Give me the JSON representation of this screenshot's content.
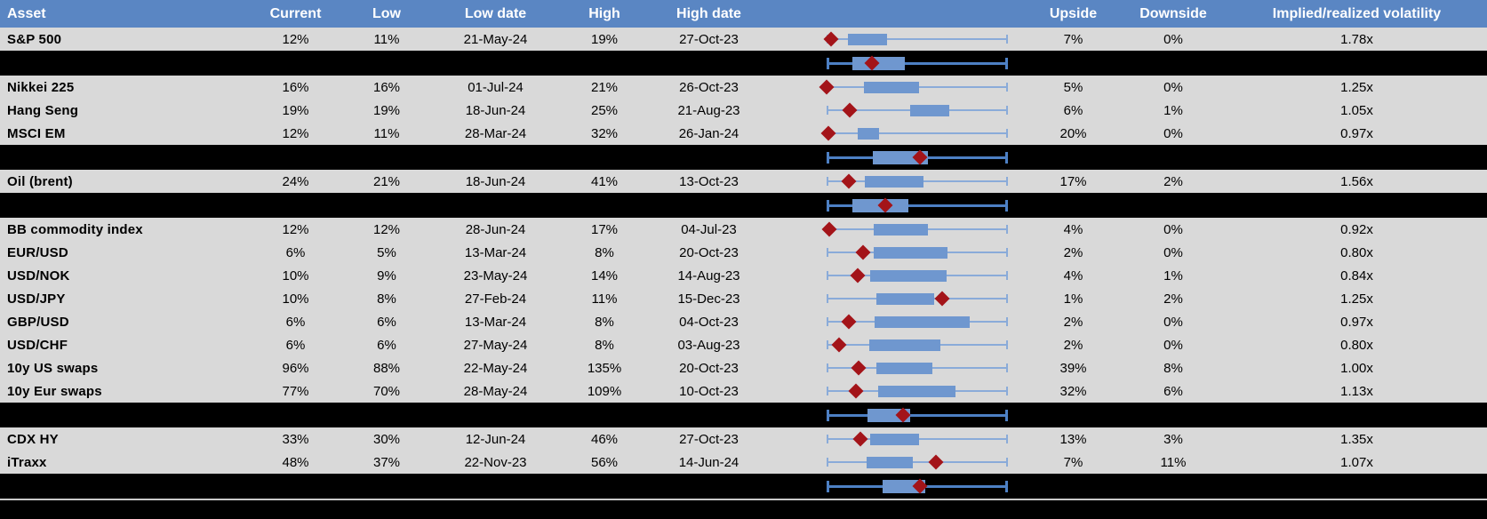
{
  "title": "Implied volatility monitor table with 1-year range box plots",
  "colors": {
    "header_bg": "#5a86c3",
    "header_text": "#ffffff",
    "row_bg": "#d9d9d9",
    "separator_bg": "#000000",
    "box_fill": "#6f97cf",
    "whisker_on_gray": "#8aabd9",
    "whisker_on_black": "#4d80c4",
    "diamond": "#a31419",
    "bottom_line": "#c9c9c9"
  },
  "header": {
    "columns": [
      "Asset",
      "Current",
      "Low",
      "Low date",
      "High",
      "High date",
      "",
      "Upside",
      "Downside",
      "Implied/realized volatility"
    ]
  },
  "chart_data": {
    "type": "table",
    "note": "Each row contains a horizontal box plot normalized to the row's low-high range: whiskers span 0-1 (full range), box = interquartile band, diamond = current level. Aggregate (black) rows show group-average box plots. Values q1/q3/diamond are fractions of the 204px plot width.",
    "legend": {
      "diamond": "current implied volatility",
      "box": "middle range (quartiles) of past year",
      "whiskers": "low-high range of past year"
    },
    "rows": [
      {
        "kind": "data",
        "asset": "S&P 500",
        "current": "12%",
        "low": "11%",
        "low_date": "21-May-24",
        "high": "19%",
        "high_date": "27-Oct-23",
        "upside": "7%",
        "downside": "0%",
        "impl_real": "1.78x",
        "boxplot": {
          "q1": 0.118,
          "q3": 0.338,
          "diamond": 0.025
        }
      },
      {
        "kind": "aggregate",
        "boxplot": {
          "q1": 0.147,
          "q3": 0.436,
          "diamond": 0.25
        }
      },
      {
        "kind": "data",
        "asset": "Nikkei 225",
        "current": "16%",
        "low": "16%",
        "low_date": "01-Jul-24",
        "high": "21%",
        "high_date": "26-Oct-23",
        "upside": "5%",
        "downside": "0%",
        "impl_real": "1.25x",
        "boxplot": {
          "q1": 0.206,
          "q3": 0.51,
          "diamond": 0.0
        }
      },
      {
        "kind": "data",
        "asset": "Hang Seng",
        "current": "19%",
        "low": "19%",
        "low_date": "18-Jun-24",
        "high": "25%",
        "high_date": "21-Aug-23",
        "upside": "6%",
        "downside": "1%",
        "impl_real": "1.05x",
        "boxplot": {
          "q1": 0.461,
          "q3": 0.681,
          "diamond": 0.132
        }
      },
      {
        "kind": "data",
        "asset": "MSCI EM",
        "current": "12%",
        "low": "11%",
        "low_date": "28-Mar-24",
        "high": "32%",
        "high_date": "26-Jan-24",
        "upside": "20%",
        "downside": "0%",
        "impl_real": "0.97x",
        "boxplot": {
          "q1": 0.176,
          "q3": 0.294,
          "diamond": 0.01
        }
      },
      {
        "kind": "aggregate",
        "boxplot": {
          "q1": 0.255,
          "q3": 0.559,
          "diamond": 0.515
        }
      },
      {
        "kind": "data",
        "asset": "Oil (brent)",
        "current": "24%",
        "low": "21%",
        "low_date": "18-Jun-24",
        "high": "41%",
        "high_date": "13-Oct-23",
        "upside": "17%",
        "downside": "2%",
        "impl_real": "1.56x",
        "boxplot": {
          "q1": 0.211,
          "q3": 0.539,
          "diamond": 0.123
        }
      },
      {
        "kind": "aggregate",
        "boxplot": {
          "q1": 0.147,
          "q3": 0.451,
          "diamond": 0.328
        }
      },
      {
        "kind": "data",
        "asset": "BB commodity index",
        "current": "12%",
        "low": "12%",
        "low_date": "28-Jun-24",
        "high": "17%",
        "high_date": "04-Jul-23",
        "upside": "4%",
        "downside": "0%",
        "impl_real": "0.92x",
        "boxplot": {
          "q1": 0.26,
          "q3": 0.559,
          "diamond": 0.015
        }
      },
      {
        "kind": "data",
        "asset": "EUR/USD",
        "current": "6%",
        "low": "5%",
        "low_date": "13-Mar-24",
        "high": "8%",
        "high_date": "20-Oct-23",
        "upside": "2%",
        "downside": "0%",
        "impl_real": "0.80x",
        "boxplot": {
          "q1": 0.26,
          "q3": 0.667,
          "diamond": 0.201
        }
      },
      {
        "kind": "data",
        "asset": "USD/NOK",
        "current": "10%",
        "low": "9%",
        "low_date": "23-May-24",
        "high": "14%",
        "high_date": "14-Aug-23",
        "upside": "4%",
        "downside": "1%",
        "impl_real": "0.84x",
        "boxplot": {
          "q1": 0.245,
          "q3": 0.662,
          "diamond": 0.176
        }
      },
      {
        "kind": "data",
        "asset": "USD/JPY",
        "current": "10%",
        "low": "8%",
        "low_date": "27-Feb-24",
        "high": "11%",
        "high_date": "15-Dec-23",
        "upside": "1%",
        "downside": "2%",
        "impl_real": "1.25x",
        "boxplot": {
          "q1": 0.279,
          "q3": 0.598,
          "diamond": 0.642
        }
      },
      {
        "kind": "data",
        "asset": "GBP/USD",
        "current": "6%",
        "low": "6%",
        "low_date": "13-Mar-24",
        "high": "8%",
        "high_date": "04-Oct-23",
        "upside": "2%",
        "downside": "0%",
        "impl_real": "0.97x",
        "boxplot": {
          "q1": 0.265,
          "q3": 0.794,
          "diamond": 0.127
        }
      },
      {
        "kind": "data",
        "asset": "USD/CHF",
        "current": "6%",
        "low": "6%",
        "low_date": "27-May-24",
        "high": "8%",
        "high_date": "03-Aug-23",
        "upside": "2%",
        "downside": "0%",
        "impl_real": "0.80x",
        "boxplot": {
          "q1": 0.24,
          "q3": 0.632,
          "diamond": 0.069
        }
      },
      {
        "kind": "data",
        "asset": "10y US swaps",
        "current": "96%",
        "low": "88%",
        "low_date": "22-May-24",
        "high": "135%",
        "high_date": "20-Oct-23",
        "upside": "39%",
        "downside": "8%",
        "impl_real": "1.00x",
        "boxplot": {
          "q1": 0.275,
          "q3": 0.588,
          "diamond": 0.181
        }
      },
      {
        "kind": "data",
        "asset": "10y Eur swaps",
        "current": "77%",
        "low": "70%",
        "low_date": "28-May-24",
        "high": "109%",
        "high_date": "10-Oct-23",
        "upside": "32%",
        "downside": "6%",
        "impl_real": "1.13x",
        "boxplot": {
          "q1": 0.289,
          "q3": 0.711,
          "diamond": 0.162
        }
      },
      {
        "kind": "aggregate",
        "boxplot": {
          "q1": 0.23,
          "q3": 0.461,
          "diamond": 0.422
        }
      },
      {
        "kind": "data",
        "asset": "CDX HY",
        "current": "33%",
        "low": "30%",
        "low_date": "12-Jun-24",
        "high": "46%",
        "high_date": "27-Oct-23",
        "upside": "13%",
        "downside": "3%",
        "impl_real": "1.35x",
        "boxplot": {
          "q1": 0.245,
          "q3": 0.51,
          "diamond": 0.191
        }
      },
      {
        "kind": "data",
        "asset": "iTraxx",
        "current": "48%",
        "low": "37%",
        "low_date": "22-Nov-23",
        "high": "56%",
        "high_date": "14-Jun-24",
        "upside": "7%",
        "downside": "11%",
        "impl_real": "1.07x",
        "boxplot": {
          "q1": 0.221,
          "q3": 0.48,
          "diamond": 0.603
        }
      },
      {
        "kind": "aggregate",
        "boxplot": {
          "q1": 0.309,
          "q3": 0.549,
          "diamond": 0.515
        }
      }
    ]
  }
}
